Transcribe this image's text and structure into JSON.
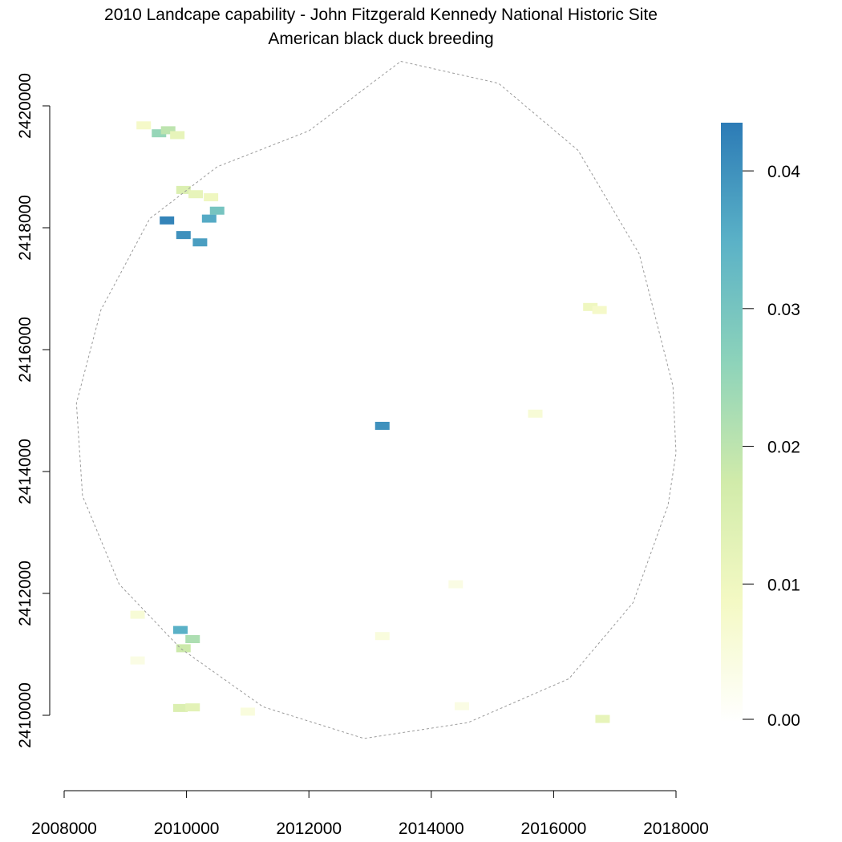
{
  "chart_data": {
    "type": "heatmap",
    "title": "2010 Landcape capability - John Fitzgerald Kennedy National Historic Site",
    "subtitle": "American black duck breeding",
    "xlabel": "",
    "ylabel": "",
    "xlim": [
      2008000,
      2018000
    ],
    "ylim": [
      2409000,
      2421000
    ],
    "x_ticks": [
      2008000,
      2010000,
      2012000,
      2014000,
      2016000,
      2018000
    ],
    "x_tick_labels": [
      "2008000",
      "2010000",
      "2012000",
      "2014000",
      "2016000",
      "2018000"
    ],
    "y_ticks": [
      2410000,
      2412000,
      2414000,
      2416000,
      2418000,
      2420000
    ],
    "y_tick_labels": [
      "2410000",
      "2412000",
      "2414000",
      "2416000",
      "2418000",
      "2420000"
    ],
    "grid": false,
    "legend": {
      "placement": "right",
      "type": "colorbar",
      "min": 0.0,
      "max": 0.0435,
      "ticks": [
        0.0,
        0.01,
        0.02,
        0.03,
        0.04
      ],
      "tick_labels": [
        "0.00",
        "0.01",
        "0.02",
        "0.03",
        "0.04"
      ],
      "colors": [
        "#ffffff",
        "#f4f9c4",
        "#d1ebaa",
        "#8dd3ba",
        "#5bb2c7",
        "#2c7bb6"
      ]
    },
    "boundary": {
      "style": "dashed",
      "color": "#9a9a9a",
      "points": [
        [
          2013500,
          2420730
        ],
        [
          2015100,
          2420370
        ],
        [
          2016400,
          2419270
        ],
        [
          2017400,
          2417570
        ],
        [
          2017950,
          2415400
        ],
        [
          2018000,
          2414300
        ],
        [
          2017870,
          2413450
        ],
        [
          2017300,
          2411850
        ],
        [
          2016250,
          2410600
        ],
        [
          2014600,
          2409880
        ],
        [
          2012900,
          2409620
        ],
        [
          2011250,
          2410140
        ],
        [
          2009900,
          2411100
        ],
        [
          2008900,
          2412150
        ],
        [
          2008300,
          2413600
        ],
        [
          2008200,
          2415120
        ],
        [
          2008600,
          2416650
        ],
        [
          2009400,
          2418150
        ],
        [
          2010500,
          2419000
        ],
        [
          2012000,
          2419590
        ]
      ]
    },
    "patches": [
      {
        "x": 2009300,
        "y": 2419680,
        "value": 0.008
      },
      {
        "x": 2009550,
        "y": 2419550,
        "value": 0.025
      },
      {
        "x": 2009700,
        "y": 2419600,
        "value": 0.02
      },
      {
        "x": 2009850,
        "y": 2419520,
        "value": 0.012
      },
      {
        "x": 2009950,
        "y": 2418620,
        "value": 0.015
      },
      {
        "x": 2010150,
        "y": 2418550,
        "value": 0.012
      },
      {
        "x": 2010400,
        "y": 2418500,
        "value": 0.01
      },
      {
        "x": 2009680,
        "y": 2418120,
        "value": 0.042
      },
      {
        "x": 2009950,
        "y": 2417880,
        "value": 0.04
      },
      {
        "x": 2010220,
        "y": 2417760,
        "value": 0.038
      },
      {
        "x": 2010370,
        "y": 2418150,
        "value": 0.036
      },
      {
        "x": 2010500,
        "y": 2418280,
        "value": 0.03
      },
      {
        "x": 2016600,
        "y": 2416700,
        "value": 0.01
      },
      {
        "x": 2016750,
        "y": 2416650,
        "value": 0.008
      },
      {
        "x": 2015700,
        "y": 2414950,
        "value": 0.006
      },
      {
        "x": 2013200,
        "y": 2414750,
        "value": 0.04
      },
      {
        "x": 2009200,
        "y": 2411650,
        "value": 0.006
      },
      {
        "x": 2009900,
        "y": 2411400,
        "value": 0.035
      },
      {
        "x": 2010100,
        "y": 2411250,
        "value": 0.022
      },
      {
        "x": 2009950,
        "y": 2411100,
        "value": 0.018
      },
      {
        "x": 2009200,
        "y": 2410900,
        "value": 0.004
      },
      {
        "x": 2009900,
        "y": 2410120,
        "value": 0.015
      },
      {
        "x": 2010100,
        "y": 2410130,
        "value": 0.013
      },
      {
        "x": 2011000,
        "y": 2410060,
        "value": 0.005
      },
      {
        "x": 2013200,
        "y": 2411300,
        "value": 0.005
      },
      {
        "x": 2014400,
        "y": 2412150,
        "value": 0.004
      },
      {
        "x": 2016800,
        "y": 2409940,
        "value": 0.012
      },
      {
        "x": 2014500,
        "y": 2410150,
        "value": 0.004
      }
    ]
  }
}
